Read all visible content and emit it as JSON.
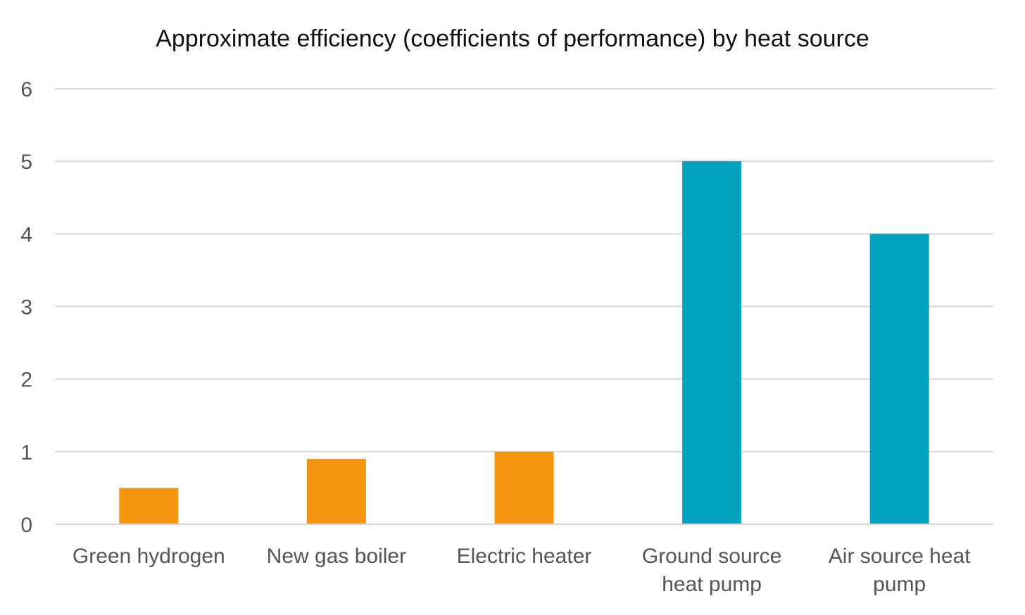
{
  "chart_data": {
    "type": "bar",
    "title": "Approximate efficiency (coefficients of performance) by heat source",
    "xlabel": "",
    "ylabel": "",
    "categories": [
      [
        "Green hydrogen"
      ],
      [
        "New gas boiler"
      ],
      [
        "Electric heater"
      ],
      [
        "Ground source",
        "heat pump"
      ],
      [
        "Air source heat",
        "pump"
      ]
    ],
    "values": [
      0.5,
      0.9,
      1,
      5,
      4
    ],
    "bar_colors": [
      "#F5950E",
      "#F5950E",
      "#F5950E",
      "#00A3BE",
      "#00A3BE"
    ],
    "ylim": [
      0,
      6
    ],
    "yticks": [
      0,
      1,
      2,
      3,
      4,
      5,
      6
    ],
    "grid": true,
    "legend": "none",
    "colors": {
      "grid": "#D9D9D9",
      "axis": "#D9D9D9",
      "tick_text": "#555555",
      "title_text": "#111111"
    }
  }
}
